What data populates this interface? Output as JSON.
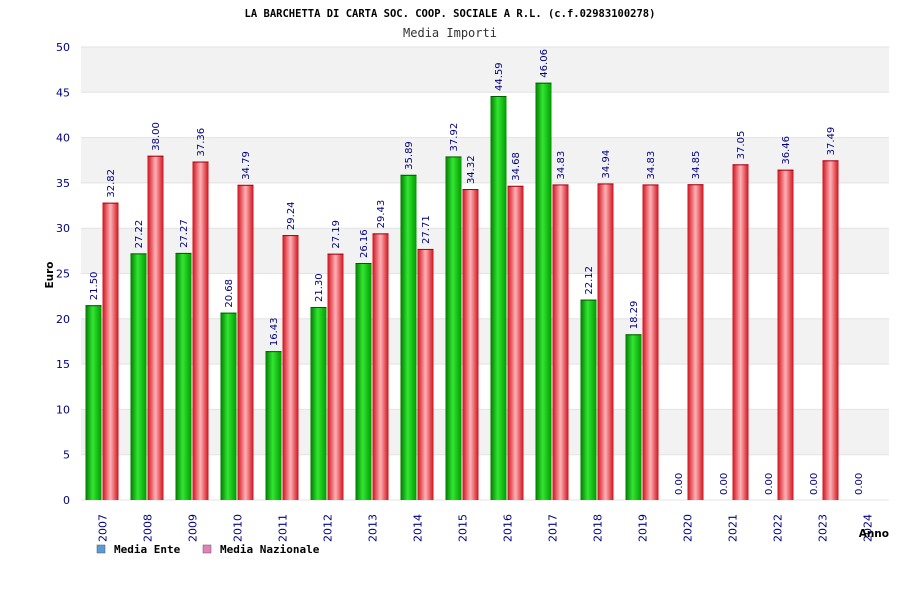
{
  "colors": {
    "ente": "#00b400",
    "nazionale": "#e8202a",
    "legend_ente": "#5b9bd5",
    "legend_nazionale": "#e382b8",
    "band": "#f2f2f2",
    "axis_text": "#000080"
  },
  "chart_data": {
    "type": "bar",
    "title": "LA BARCHETTA DI CARTA SOC. COOP. SOCIALE A R.L. (c.f.02983100278)",
    "subtitle": "Media Importi",
    "xlabel": "Anno",
    "ylabel": "Euro",
    "ylim": [
      0,
      50
    ],
    "yticks": [
      "0",
      "5",
      "10",
      "15",
      "20",
      "25",
      "30",
      "35",
      "40",
      "45",
      "50"
    ],
    "categories": [
      "2007",
      "2008",
      "2009",
      "2010",
      "2011",
      "2012",
      "2013",
      "2014",
      "2015",
      "2016",
      "2017",
      "2018",
      "2019",
      "2020",
      "2021",
      "2022",
      "2023",
      "2024"
    ],
    "series": [
      {
        "name": "Media Ente",
        "values": [
          21.5,
          27.22,
          27.27,
          20.68,
          16.43,
          21.3,
          26.16,
          35.89,
          37.92,
          44.59,
          46.06,
          22.12,
          18.29,
          0.0,
          0.0,
          0.0,
          0.0,
          0.0
        ],
        "labels": [
          "21.50",
          "27.22",
          "27.27",
          "20.68",
          "16.43",
          "21.30",
          "26.16",
          "35.89",
          "37.92",
          "44.59",
          "46.06",
          "22.12",
          "18.29",
          "0.00",
          "0.00",
          "0.00",
          "0.00",
          "0.00"
        ]
      },
      {
        "name": "Media Nazionale",
        "values": [
          32.82,
          38.0,
          37.36,
          34.79,
          29.24,
          27.19,
          29.43,
          27.71,
          34.32,
          34.68,
          34.83,
          34.94,
          34.83,
          34.85,
          37.05,
          36.46,
          37.49,
          null
        ],
        "labels": [
          "32.82",
          "38.00",
          "37.36",
          "34.79",
          "29.24",
          "27.19",
          "29.43",
          "27.71",
          "34.32",
          "34.68",
          "34.83",
          "34.94",
          "34.83",
          "34.85",
          "37.05",
          "36.46",
          "37.49",
          null
        ]
      }
    ],
    "legend": "bottom-left",
    "grid": "horizontal-bands"
  }
}
